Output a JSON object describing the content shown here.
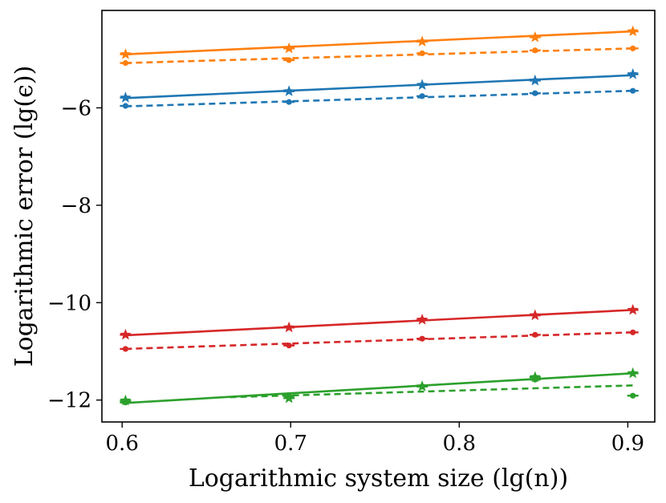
{
  "chart_data": {
    "type": "line",
    "title": "",
    "xlabel": "Logarithmic system size (lg(n))",
    "ylabel": "Logarithmic error (lg(ϵ))",
    "xlim": [
      0.588,
      0.916
    ],
    "ylim": [
      -12.45,
      -4.0
    ],
    "xticks": [
      {
        "value": 0.6,
        "label": "0.6"
      },
      {
        "value": 0.7,
        "label": "0.7"
      },
      {
        "value": 0.8,
        "label": "0.8"
      },
      {
        "value": 0.9,
        "label": "0.9"
      }
    ],
    "yticks": [
      {
        "value": -6,
        "label": "−6"
      },
      {
        "value": -8,
        "label": "−8"
      },
      {
        "value": -10,
        "label": "−10"
      },
      {
        "value": -12,
        "label": "−12"
      }
    ],
    "grid": false,
    "x": [
      0.602,
      0.699,
      0.778,
      0.845,
      0.903
    ],
    "series": [
      {
        "color": "#ff7f0e",
        "marker": "star",
        "points": [
          -4.9,
          -4.78,
          -4.64,
          -4.55,
          -4.43
        ],
        "fit": [
          -4.9,
          -4.43
        ]
      },
      {
        "color": "#ff7f0e",
        "marker": "dot",
        "points": [
          -5.08,
          -5.02,
          -4.88,
          -4.82,
          -4.78
        ],
        "fit": [
          -5.08,
          -4.78
        ]
      },
      {
        "color": "#1f77b4",
        "marker": "star",
        "points": [
          -5.79,
          -5.66,
          -5.53,
          -5.44,
          -5.31
        ],
        "fit": [
          -5.8,
          -5.33
        ]
      },
      {
        "color": "#1f77b4",
        "marker": "dot",
        "points": [
          -5.96,
          -5.88,
          -5.76,
          -5.7,
          -5.65
        ],
        "fit": [
          -5.97,
          -5.65
        ]
      },
      {
        "color": "#d62728",
        "marker": "star",
        "points": [
          -10.66,
          -10.51,
          -10.35,
          -10.26,
          -10.15
        ],
        "fit": [
          -10.67,
          -10.15
        ]
      },
      {
        "color": "#d62728",
        "marker": "dot",
        "points": [
          -10.95,
          -10.88,
          -10.74,
          -10.66,
          -10.61
        ],
        "fit": [
          -10.95,
          -10.61
        ]
      },
      {
        "color": "#2ca02c",
        "marker": "star",
        "points": [
          -12.01,
          -11.96,
          -11.72,
          -11.53,
          -11.45
        ],
        "fit": [
          -12.06,
          -11.45
        ]
      },
      {
        "color": "#2ca02c",
        "marker": "dot",
        "points": [
          -12.05,
          -11.91,
          -11.72,
          -11.58,
          -11.91
        ],
        "fit_x": [
          0.664,
          0.903
        ],
        "fit": [
          -11.94,
          -11.7
        ]
      }
    ]
  }
}
